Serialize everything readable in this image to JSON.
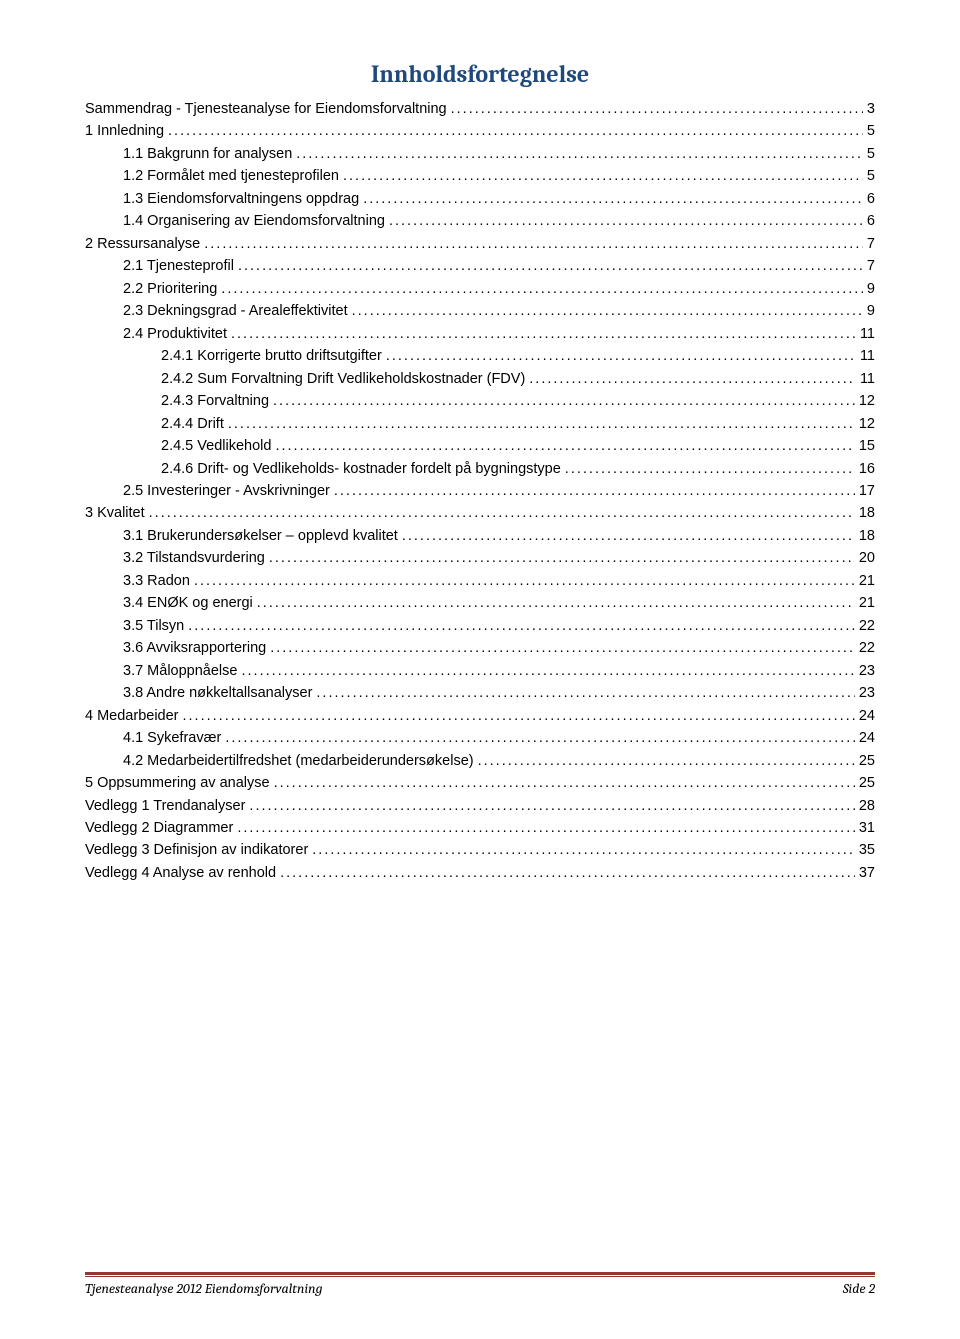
{
  "title": {
    "text": "Innholdsfortegnelse",
    "color": "#1f497d",
    "fontsize": 24
  },
  "toc_fontsize": 14.5,
  "toc": [
    {
      "indent": 0,
      "label": "Sammendrag - Tjenesteanalyse for Eiendomsforvaltning",
      "page": "3"
    },
    {
      "indent": 0,
      "label": "1   Innledning",
      "page": "5"
    },
    {
      "indent": 1,
      "label": "1.1   Bakgrunn for analysen",
      "page": "5"
    },
    {
      "indent": 1,
      "label": "1.2   Formålet med tjenesteprofilen",
      "page": "5"
    },
    {
      "indent": 1,
      "label": "1.3   Eiendomsforvaltningens oppdrag",
      "page": "6"
    },
    {
      "indent": 1,
      "label": "1.4   Organisering av Eiendomsforvaltning",
      "page": "6"
    },
    {
      "indent": 0,
      "label": "2   Ressursanalyse",
      "page": "7"
    },
    {
      "indent": 1,
      "label": "2.1   Tjenesteprofil",
      "page": "7"
    },
    {
      "indent": 1,
      "label": "2.2   Prioritering",
      "page": "9"
    },
    {
      "indent": 1,
      "label": "2.3   Dekningsgrad - Arealeffektivitet",
      "page": "9"
    },
    {
      "indent": 1,
      "label": "2.4   Produktivitet",
      "page": "11"
    },
    {
      "indent": 2,
      "label": "2.4.1   Korrigerte brutto driftsutgifter",
      "page": "11"
    },
    {
      "indent": 2,
      "label": "2.4.2   Sum Forvaltning Drift Vedlikeholdskostnader (FDV)",
      "page": "11"
    },
    {
      "indent": 2,
      "label": "2.4.3   Forvaltning",
      "page": "12"
    },
    {
      "indent": 2,
      "label": "2.4.4   Drift",
      "page": "12"
    },
    {
      "indent": 2,
      "label": "2.4.5   Vedlikehold",
      "page": "15"
    },
    {
      "indent": 2,
      "label": "2.4.6   Drift- og Vedlikeholds- kostnader fordelt på bygningstype",
      "page": "16"
    },
    {
      "indent": 1,
      "label": "2.5   Investeringer - Avskrivninger",
      "page": "17"
    },
    {
      "indent": 0,
      "label": "3   Kvalitet",
      "page": "18"
    },
    {
      "indent": 1,
      "label": "3.1   Brukerundersøkelser – opplevd kvalitet",
      "page": "18"
    },
    {
      "indent": 1,
      "label": "3.2   Tilstandsvurdering",
      "page": "20"
    },
    {
      "indent": 1,
      "label": "3.3   Radon",
      "page": "21"
    },
    {
      "indent": 1,
      "label": "3.4   ENØK og energi",
      "page": "21"
    },
    {
      "indent": 1,
      "label": "3.5   Tilsyn",
      "page": "22"
    },
    {
      "indent": 1,
      "label": "3.6   Avviksrapportering",
      "page": "22"
    },
    {
      "indent": 1,
      "label": "3.7   Måloppnåelse",
      "page": "23"
    },
    {
      "indent": 1,
      "label": "3.8   Andre nøkkeltallsanalyser",
      "page": "23"
    },
    {
      "indent": 0,
      "label": "4   Medarbeider",
      "page": "24"
    },
    {
      "indent": 1,
      "label": "4.1   Sykefravær",
      "page": "24"
    },
    {
      "indent": 1,
      "label": "4.2   Medarbeidertilfredshet (medarbeiderundersøkelse)",
      "page": "25"
    },
    {
      "indent": 0,
      "label": "5   Oppsummering av analyse",
      "page": "25"
    },
    {
      "indent": 0,
      "label": "Vedlegg 1 Trendanalyser",
      "page": "28"
    },
    {
      "indent": 0,
      "label": "Vedlegg 2 Diagrammer",
      "page": "31"
    },
    {
      "indent": 0,
      "label": "Vedlegg 3 Definisjon av indikatorer",
      "page": "35"
    },
    {
      "indent": 0,
      "label": "Vedlegg 4 Analyse av renhold",
      "page": "37"
    }
  ],
  "footer": {
    "rule_color": "#943634",
    "left": "Tjenesteanalyse 2012 Eiendomsforvaltning",
    "right": "Side 2",
    "fontsize": 14,
    "text_color": "#000000"
  }
}
